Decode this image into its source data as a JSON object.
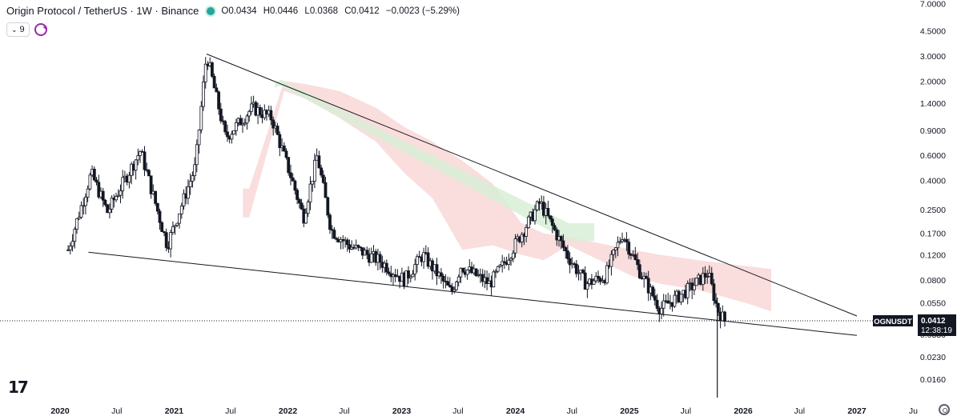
{
  "header": {
    "title": "Origin Protocol / TetherUS · 1W · Binance",
    "open_label": "O",
    "open": "0.0434",
    "high_label": "H",
    "high": "0.0446",
    "low_label": "L",
    "low": "0.0368",
    "close_label": "C",
    "close": "0.0412",
    "change": "−0.0023 (−5.29%)",
    "indicator_count": "9"
  },
  "colors": {
    "up": "#131722",
    "down": "#131722",
    "cloud_bear": "#f9d7d7",
    "cloud_bull": "#d8efd6",
    "accent": "#26a69a"
  },
  "icons": {
    "status": "status-dot-icon",
    "collapse": "chevron-down-icon",
    "sync": "sync-icon",
    "logo": "tradingview-logo",
    "settings": "gear-icon"
  },
  "price_label": {
    "symbol": "OGNUSDT",
    "price": "0.0412",
    "countdown": "12:38:19"
  },
  "chart_data": {
    "type": "candlestick",
    "title": "Origin Protocol / TetherUS · 1W · Binance",
    "scale": "log",
    "y_ticks": [
      "7.0000",
      "4.5000",
      "3.0000",
      "2.0000",
      "1.4000",
      "0.9000",
      "0.6000",
      "0.4000",
      "0.2500",
      "0.1700",
      "0.1200",
      "0.0800",
      "0.0550",
      "0.0330",
      "0.0230",
      "0.0160"
    ],
    "x_ticks": [
      "2020",
      "Jul",
      "2021",
      "Jul",
      "2022",
      "Jul",
      "2023",
      "Jul",
      "2024",
      "Jul",
      "2025",
      "Jul",
      "2026",
      "Jul",
      "2027",
      "Ju"
    ],
    "price_path": [
      [
        "2020-01-27",
        0.13
      ],
      [
        "2020-04-10",
        0.45
      ],
      [
        "2020-06-01",
        0.24
      ],
      [
        "2020-09-15",
        0.65
      ],
      [
        "2020-12-10",
        0.14
      ],
      [
        "2021-03-10",
        0.5
      ],
      [
        "2021-04-15",
        3.1
      ],
      [
        "2021-06-15",
        0.8
      ],
      [
        "2021-09-10",
        1.3
      ],
      [
        "2021-11-10",
        1.1
      ],
      [
        "2022-01-15",
        0.4
      ],
      [
        "2022-02-20",
        0.22
      ],
      [
        "2022-04-05",
        0.6
      ],
      [
        "2022-05-20",
        0.18
      ],
      [
        "2022-07-15",
        0.14
      ],
      [
        "2022-10-20",
        0.11
      ],
      [
        "2023-01-10",
        0.08
      ],
      [
        "2023-03-10",
        0.12
      ],
      [
        "2023-06-10",
        0.065
      ],
      [
        "2023-07-10",
        0.1
      ],
      [
        "2023-10-10",
        0.075
      ],
      [
        "2023-11-20",
        0.1
      ],
      [
        "2024-03-20",
        0.28
      ],
      [
        "2024-06-15",
        0.12
      ],
      [
        "2024-08-15",
        0.075
      ],
      [
        "2024-10-15",
        0.085
      ],
      [
        "2024-12-10",
        0.17
      ],
      [
        "2025-02-05",
        0.09
      ],
      [
        "2025-04-10",
        0.05
      ],
      [
        "2025-07-15",
        0.07
      ],
      [
        "2025-09-10",
        0.09
      ],
      [
        "2025-10-10",
        0.05
      ],
      [
        "2025-11-03",
        0.0412
      ]
    ],
    "notable_wick_low": 0.01,
    "trendlines": [
      {
        "name": "upper",
        "from": [
          "2021-04-15",
          3.1
        ],
        "to": [
          "2027-01-01",
          0.0445
        ]
      },
      {
        "name": "lower",
        "from": [
          "2020-04-01",
          0.125
        ],
        "to": [
          "2027-01-01",
          0.0325
        ]
      }
    ],
    "cloud_bands": [
      {
        "color": "cloud_bear",
        "points": [
          [
            "2021-08-10",
            0.35,
            0.22
          ],
          [
            "2021-08-30",
            0.35,
            0.22
          ],
          [
            "2021-12-20",
            2.0,
            1.7
          ],
          [
            "2022-03-01",
            1.9,
            1.5
          ],
          [
            "2022-06-15",
            1.7,
            1.1
          ],
          [
            "2022-10-10",
            1.3,
            0.75
          ],
          [
            "2023-01-10",
            0.95,
            0.45
          ],
          [
            "2023-04-10",
            0.75,
            0.3
          ],
          [
            "2023-07-15",
            0.55,
            0.13
          ],
          [
            "2023-10-20",
            0.38,
            0.14
          ],
          [
            "2024-01-20",
            0.2,
            0.12
          ],
          [
            "2024-04-01",
            0.17,
            0.11
          ],
          [
            "2024-06-20",
            0.16,
            0.14
          ],
          [
            "2025-01-10",
            0.13,
            0.085
          ],
          [
            "2025-04-10",
            0.12,
            0.075
          ],
          [
            "2025-08-10",
            0.11,
            0.068
          ],
          [
            "2026-01-10",
            0.1,
            0.055
          ],
          [
            "2026-04-01",
            0.095,
            0.048
          ]
        ]
      },
      {
        "color": "cloud_bull",
        "points": [
          [
            "2021-11-20",
            1.95,
            1.8
          ],
          [
            "2021-12-10",
            2.05,
            1.85
          ],
          [
            "2024-06-20",
            0.2,
            0.15
          ],
          [
            "2024-09-10",
            0.2,
            0.15
          ]
        ]
      }
    ],
    "last_price": 0.0412,
    "grid": false,
    "legend": "none"
  }
}
